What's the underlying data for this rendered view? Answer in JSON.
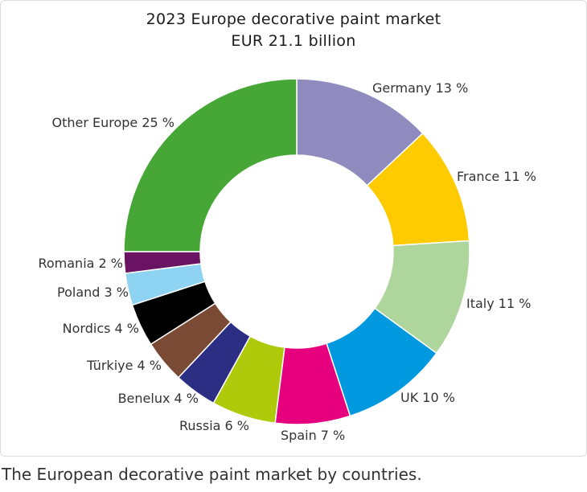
{
  "chart_data": {
    "type": "pie",
    "title": "2023 Europe decorative paint market",
    "subtitle": "EUR 21.1 billion",
    "hole": true,
    "slices": [
      {
        "label": "Germany 13 %",
        "value": 13,
        "color": "#8f8bbf"
      },
      {
        "label": "France 11 %",
        "value": 11,
        "color": "#fecb00"
      },
      {
        "label": "Italy 11 %",
        "value": 11,
        "color": "#aed59b"
      },
      {
        "label": "UK 10 %",
        "value": 10,
        "color": "#0099df"
      },
      {
        "label": "Spain 7 %",
        "value": 7,
        "color": "#e6007e"
      },
      {
        "label": "Russia 6 %",
        "value": 6,
        "color": "#afca0b"
      },
      {
        "label": "Benelux 4 %",
        "value": 4,
        "color": "#2c2e83"
      },
      {
        "label": "Türkiye 4 %",
        "value": 4,
        "color": "#7b4a35"
      },
      {
        "label": "Nordics 4 %",
        "value": 4,
        "color": "#000000"
      },
      {
        "label": "Poland 3 %",
        "value": 3,
        "color": "#8fd3f2"
      },
      {
        "label": "Romania 2 %",
        "value": 2,
        "color": "#6a1363"
      },
      {
        "label": "Other Europe 25 %",
        "value": 25,
        "color": "#47a736"
      }
    ]
  },
  "caption": "The European decorative paint market by countries."
}
